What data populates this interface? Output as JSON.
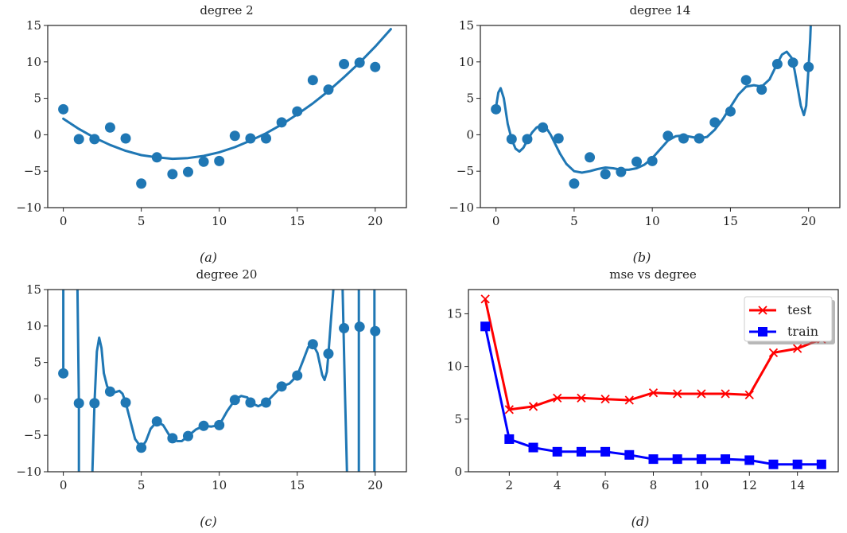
{
  "chart_data": [
    {
      "id": "a",
      "type": "scatter",
      "title": "degree 2",
      "caption": "(a)",
      "xlabel": "",
      "ylabel": "",
      "xlim": [
        -1,
        22
      ],
      "ylim": [
        -10,
        15
      ],
      "xticks": [
        0,
        5,
        10,
        15,
        20
      ],
      "yticks": [
        -10,
        -5,
        0,
        5,
        10,
        15
      ],
      "ytick_labels": [
        "−10",
        "−5",
        "0",
        "5",
        "10",
        "15"
      ],
      "grid": false,
      "color": "#1f77b4",
      "points": {
        "x": [
          0,
          1,
          2,
          3,
          4,
          5,
          6,
          7,
          8,
          9,
          10,
          11,
          12,
          13,
          14,
          15,
          16,
          17,
          18,
          19,
          20
        ],
        "y": [
          3.5,
          -0.6,
          -0.6,
          1.0,
          -0.5,
          -6.7,
          -3.1,
          -5.4,
          -5.1,
          -3.7,
          -3.6,
          -0.15,
          -0.5,
          -0.5,
          1.7,
          3.2,
          7.5,
          6.2,
          9.7,
          9.9,
          9.3
        ]
      },
      "fit_curve": {
        "x": [
          0,
          1,
          2,
          3,
          4,
          5,
          6,
          7,
          8,
          9,
          10,
          11,
          12,
          13,
          14,
          15,
          16,
          17,
          18,
          19,
          20,
          21
        ],
        "y": [
          2.2,
          0.8,
          -0.4,
          -1.4,
          -2.2,
          -2.8,
          -3.1,
          -3.3,
          -3.2,
          -2.9,
          -2.4,
          -1.7,
          -0.8,
          0.2,
          1.4,
          2.8,
          4.3,
          6.0,
          7.9,
          9.9,
          12.1,
          14.5
        ]
      }
    },
    {
      "id": "b",
      "type": "scatter",
      "title": "degree 14",
      "caption": "(b)",
      "xlim": [
        -1,
        22
      ],
      "ylim": [
        -10,
        15
      ],
      "xticks": [
        0,
        5,
        10,
        15,
        20
      ],
      "yticks": [
        -10,
        -5,
        0,
        5,
        10,
        15
      ],
      "ytick_labels": [
        "−10",
        "−5",
        "0",
        "5",
        "10",
        "15"
      ],
      "grid": false,
      "color": "#1f77b4",
      "points": {
        "x": [
          0,
          1,
          2,
          3,
          4,
          5,
          6,
          7,
          8,
          9,
          10,
          11,
          12,
          13,
          14,
          15,
          16,
          17,
          18,
          19,
          20
        ],
        "y": [
          3.5,
          -0.6,
          -0.6,
          1.0,
          -0.5,
          -6.7,
          -3.1,
          -5.4,
          -5.1,
          -3.7,
          -3.6,
          -0.15,
          -0.5,
          -0.5,
          1.7,
          3.2,
          7.5,
          6.2,
          9.7,
          9.9,
          9.3
        ]
      },
      "fit_curve": {
        "x": [
          0,
          0.15,
          0.3,
          0.5,
          0.75,
          1.0,
          1.25,
          1.5,
          1.75,
          2.0,
          2.3,
          2.6,
          2.9,
          3.2,
          3.5,
          3.8,
          4.1,
          4.5,
          5.0,
          5.5,
          6.0,
          6.5,
          7.0,
          7.5,
          8.0,
          8.5,
          9.0,
          9.5,
          10.0,
          10.5,
          11.0,
          11.5,
          12.0,
          12.5,
          13.0,
          13.5,
          14.0,
          14.5,
          15.0,
          15.5,
          16.0,
          16.5,
          17.0,
          17.5,
          18.0,
          18.3,
          18.6,
          18.9,
          19.1,
          19.3,
          19.5,
          19.7,
          19.85,
          20.0,
          20.1,
          20.15
        ],
        "y": [
          3.8,
          5.8,
          6.4,
          5.0,
          1.5,
          -0.6,
          -1.9,
          -2.3,
          -1.8,
          -0.8,
          0.3,
          1.0,
          1.3,
          1.0,
          0.0,
          -1.3,
          -2.6,
          -4.0,
          -5.0,
          -5.2,
          -5.0,
          -4.7,
          -4.5,
          -4.6,
          -4.8,
          -4.8,
          -4.6,
          -4.1,
          -3.2,
          -2.0,
          -0.8,
          -0.2,
          -0.1,
          -0.3,
          -0.5,
          -0.3,
          0.7,
          2.1,
          3.8,
          5.5,
          6.6,
          6.8,
          6.6,
          7.6,
          9.8,
          11.0,
          11.4,
          10.6,
          8.9,
          6.5,
          4.0,
          2.7,
          4.0,
          9.3,
          13.0,
          15.5
        ]
      }
    },
    {
      "id": "c",
      "type": "scatter",
      "title": "degree 20",
      "caption": "(c)",
      "xlim": [
        -1,
        22
      ],
      "ylim": [
        -10,
        15
      ],
      "xticks": [
        0,
        5,
        10,
        15,
        20
      ],
      "yticks": [
        -10,
        -5,
        0,
        5,
        10,
        15
      ],
      "ytick_labels": [
        "−10",
        "−5",
        "0",
        "5",
        "10",
        "15"
      ],
      "grid": false,
      "color": "#1f77b4",
      "points": {
        "x": [
          0,
          1,
          2,
          3,
          4,
          5,
          6,
          7,
          8,
          9,
          10,
          11,
          12,
          13,
          14,
          15,
          16,
          17,
          18,
          19,
          20
        ],
        "y": [
          3.5,
          -0.6,
          -0.6,
          1.0,
          -0.5,
          -6.7,
          -3.1,
          -5.4,
          -5.1,
          -3.7,
          -3.6,
          -0.15,
          -0.5,
          -0.5,
          1.7,
          3.2,
          7.5,
          6.2,
          9.7,
          9.9,
          9.3
        ]
      },
      "fit_curve": {
        "x": [
          0,
          0.0,
          0.9,
          1.0,
          1.0,
          1.85,
          2.0,
          2.15,
          2.3,
          2.45,
          2.6,
          2.8,
          3.0,
          3.3,
          3.6,
          3.8,
          4.0,
          4.3,
          4.6,
          5.0,
          5.3,
          5.6,
          6.0,
          6.4,
          6.8,
          7.0,
          7.3,
          7.6,
          8.0,
          8.5,
          9.0,
          9.5,
          10.0,
          10.5,
          11.0,
          11.4,
          11.8,
          12.0,
          12.5,
          13.0,
          13.5,
          14.0,
          14.5,
          15.0,
          15.4,
          15.7,
          16.0,
          16.3,
          16.6,
          16.75,
          16.9,
          17.0,
          17.15,
          17.3,
          17.35
        ],
        "y": [
          3.5,
          16,
          16,
          -0.6,
          -11,
          -11,
          -0.6,
          6.5,
          8.4,
          7.0,
          3.5,
          1.8,
          1.0,
          0.9,
          1.1,
          0.7,
          -0.5,
          -3.0,
          -5.5,
          -6.7,
          -5.8,
          -4.1,
          -3.1,
          -3.6,
          -5.0,
          -5.4,
          -5.8,
          -5.8,
          -5.1,
          -4.2,
          -3.7,
          -3.8,
          -3.6,
          -1.7,
          -0.15,
          0.4,
          0.2,
          -0.5,
          -1.0,
          -0.5,
          0.6,
          1.7,
          2.1,
          3.2,
          5.4,
          7.1,
          7.5,
          6.3,
          3.3,
          2.6,
          3.7,
          6.2,
          10.5,
          14.5,
          16
        ]
      },
      "extra_segments": [
        {
          "x": [
            17.9,
            18.05,
            18.2
          ],
          "y": [
            16,
            2,
            -11
          ]
        },
        {
          "x": [
            18.0,
            18.0
          ],
          "y": [
            9.7,
            9.7
          ]
        },
        {
          "x": [
            18.95,
            18.95
          ],
          "y": [
            16,
            -11
          ]
        },
        {
          "x": [
            19.95,
            19.95
          ],
          "y": [
            16,
            -11
          ]
        }
      ]
    },
    {
      "id": "d",
      "type": "line",
      "title": "mse vs degree",
      "caption": "(d)",
      "xlim": [
        0.3,
        15.7
      ],
      "ylim": [
        0,
        17.3
      ],
      "xticks": [
        2,
        4,
        6,
        8,
        10,
        12,
        14
      ],
      "yticks": [
        0,
        5,
        10,
        15
      ],
      "ytick_labels": [
        "0",
        "5",
        "10",
        "15"
      ],
      "grid": false,
      "legend": {
        "position": "top-right",
        "entries": [
          "test",
          "train"
        ]
      },
      "x": [
        1,
        2,
        3,
        4,
        5,
        6,
        7,
        8,
        9,
        10,
        11,
        12,
        13,
        14,
        15
      ],
      "series": [
        {
          "name": "test",
          "color": "#ff0000",
          "marker": "x",
          "values": [
            16.4,
            5.9,
            6.2,
            7.0,
            7.0,
            6.9,
            6.8,
            7.5,
            7.4,
            7.4,
            7.4,
            7.3,
            11.3,
            11.7,
            12.6
          ]
        },
        {
          "name": "train",
          "color": "#0000ff",
          "marker": "square",
          "values": [
            13.8,
            3.1,
            2.3,
            1.9,
            1.9,
            1.9,
            1.6,
            1.2,
            1.2,
            1.2,
            1.2,
            1.1,
            0.7,
            0.7,
            0.7
          ]
        }
      ]
    }
  ]
}
